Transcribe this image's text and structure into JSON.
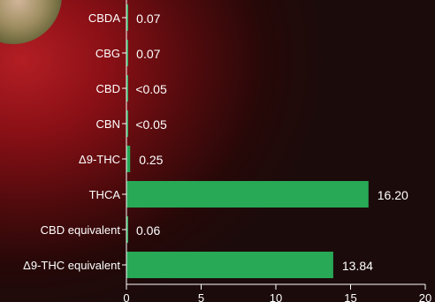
{
  "colors": {
    "bar": "#27a956",
    "text": "#ffffff",
    "axis": "#ffffff",
    "background_accent": "#b31e24"
  },
  "chart_data": {
    "type": "bar",
    "orientation": "horizontal",
    "categories": [
      "CBDA",
      "CBG",
      "CBD",
      "CBN",
      "Δ9-THC",
      "THCA",
      "CBD equivalent",
      "Δ9-THC equivalent"
    ],
    "values": [
      0.07,
      0.07,
      0.02,
      0.02,
      0.25,
      16.2,
      0.06,
      13.84
    ],
    "value_labels": [
      "0.07",
      "0.07",
      "<0.05",
      "<0.05",
      "0.25",
      "16.20",
      "0.06",
      "13.84"
    ],
    "xlim": [
      0,
      20
    ],
    "xticks": [
      0,
      5,
      10,
      15,
      20
    ],
    "grid": false,
    "legend": "none"
  }
}
